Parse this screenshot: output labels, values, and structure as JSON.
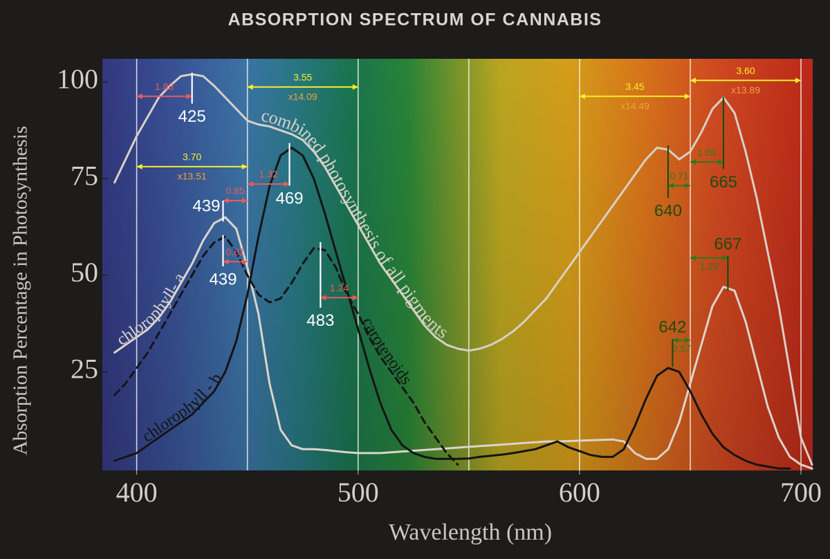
{
  "chart_data": {
    "type": "line",
    "title": "ABSORPTION SPECTRUM OF CANNABIS",
    "x_label": "Wavelength (nm)",
    "y_label": "Absorption Percentage in Photosynthesis",
    "xlim": [
      384.5,
      705.3
    ],
    "ylim": [
      -0.5,
      106
    ],
    "xticks": [
      400,
      500,
      600,
      700
    ],
    "yticks": [
      25,
      50,
      75,
      100
    ],
    "x_gridlines": [
      400,
      450,
      500,
      550,
      600,
      650,
      700
    ],
    "x": [
      390,
      395,
      400,
      405,
      410,
      415,
      420,
      425,
      430,
      435,
      440,
      445,
      450,
      455,
      460,
      465,
      470,
      475,
      480,
      485,
      490,
      495,
      500,
      505,
      510,
      515,
      520,
      525,
      530,
      535,
      540,
      545,
      550,
      555,
      560,
      565,
      570,
      575,
      580,
      585,
      590,
      595,
      600,
      605,
      610,
      615,
      620,
      625,
      630,
      635,
      640,
      645,
      650,
      655,
      660,
      665,
      670,
      675,
      680,
      685,
      690,
      695,
      700,
      705
    ],
    "series": [
      {
        "name": "combined photosynthesis of all pigments",
        "color": "#d8d0c8",
        "style": "solid",
        "values": [
          74,
          80,
          86,
          91,
          96,
          99,
          101.5,
          102,
          101.5,
          99,
          96,
          93,
          90,
          89,
          88.5,
          87.5,
          86.5,
          85,
          82,
          78,
          73,
          68,
          63,
          58,
          53,
          49,
          45,
          41,
          37,
          34,
          32,
          31,
          30.5,
          31,
          32,
          33.5,
          35.5,
          38,
          41,
          44,
          48,
          52,
          56,
          60,
          64,
          68,
          72,
          76,
          80,
          83,
          82.5,
          80,
          82,
          87,
          93,
          96,
          92,
          82,
          70,
          56,
          42,
          25,
          8,
          1
        ]
      },
      {
        "name": "chlorophyll- a",
        "color": "#dcd4cc",
        "style": "solid",
        "values": [
          30,
          32,
          34,
          36,
          39,
          43,
          48,
          53,
          59,
          63.5,
          65,
          62,
          52,
          40,
          22,
          10,
          6,
          5,
          5,
          4.8,
          4.5,
          4.2,
          4,
          4,
          4,
          4.2,
          4.4,
          4.6,
          4.8,
          5,
          5.2,
          5.4,
          5.6,
          5.8,
          6,
          6.2,
          6.4,
          6.6,
          6.8,
          7,
          7,
          7.1,
          7.2,
          7.3,
          7.4,
          7.5,
          7,
          4,
          2.5,
          2.5,
          5,
          12,
          22,
          32,
          42,
          47,
          46,
          38,
          27,
          16,
          8,
          3,
          1,
          0
        ]
      },
      {
        "name": "chlorophyll - b",
        "color": "#141414",
        "style": "solid",
        "values": [
          2,
          3,
          4,
          6,
          8,
          10,
          12,
          14,
          17,
          20,
          25,
          33,
          45,
          60,
          73,
          81,
          83,
          81,
          75,
          66,
          56,
          46,
          36,
          26,
          17,
          10,
          6,
          4,
          3,
          2.5,
          2.5,
          2.5,
          2.6,
          3,
          3.3,
          3.6,
          4,
          4.5,
          5,
          6,
          7,
          5.5,
          4.5,
          3.5,
          3,
          3,
          5,
          11,
          18,
          24,
          26,
          25,
          20,
          14,
          9,
          5.5,
          3.5,
          2,
          1,
          0.5,
          0,
          0,
          null,
          null
        ]
      },
      {
        "name": "carotenoids",
        "color": "#141414",
        "style": "dashed",
        "values": [
          19,
          22,
          26,
          30,
          35,
          40,
          45,
          50,
          55,
          58.5,
          60,
          56,
          50,
          45,
          43,
          44,
          48,
          53,
          57,
          56.5,
          52,
          45,
          40,
          34,
          29,
          25,
          21,
          17,
          12,
          8,
          4,
          1,
          null,
          null,
          null,
          null,
          null,
          null,
          null,
          null,
          null,
          null,
          null,
          null,
          null,
          null,
          null,
          null,
          null,
          null,
          null,
          null,
          null,
          null,
          null,
          null,
          null,
          null,
          null,
          null,
          null,
          null,
          null,
          null
        ]
      }
    ],
    "peaks": [
      {
        "x": 425,
        "y": 102.4,
        "y2": 94.4,
        "color": "#ffffff",
        "label_pos": "below"
      },
      {
        "x": 439,
        "y": 69.3,
        "y2": 63.9,
        "color": "#ffffff",
        "label_pos": "left"
      },
      {
        "x": 439,
        "y": 60.4,
        "y2": 52.3,
        "color": "#ffffff",
        "label_pos": "below"
      },
      {
        "x": 469,
        "y": 84.2,
        "y2": 73.2,
        "color": "#ffffff",
        "label_pos": "below"
      },
      {
        "x": 483,
        "y": 58.6,
        "y2": 41.6,
        "color": "#ffffff",
        "label_pos": "below"
      },
      {
        "x": 640,
        "y": 83.6,
        "y2": 70,
        "color": "#1c4d10",
        "label_pos": "below"
      },
      {
        "x": 665,
        "y": 96.1,
        "y2": 77.4,
        "color": "#1c4d10",
        "label_pos": "below"
      },
      {
        "x": 667,
        "y": 55,
        "y2": 46,
        "color": "#1c4d10",
        "label_pos": "above"
      },
      {
        "x": 642,
        "y": 33.5,
        "y2": 26.3,
        "color": "#1c4d10",
        "label_pos": "above"
      }
    ],
    "spans": [
      {
        "from": 400,
        "to": 425,
        "y": 96.3,
        "label": "1.88",
        "color": "#f05a5a",
        "label_pos": "above"
      },
      {
        "from": 439,
        "to": 450,
        "y": 69.3,
        "label": "0.85",
        "color": "#f05a5a",
        "label_pos": "above"
      },
      {
        "from": 439,
        "to": 450,
        "y": 53.5,
        "label": "0.81",
        "color": "#f05a5a",
        "label_pos": "above"
      },
      {
        "from": 450,
        "to": 469,
        "y": 73.6,
        "label": "1.32",
        "color": "#f05a5a",
        "label_pos": "above"
      },
      {
        "from": 483,
        "to": 500,
        "y": 44.2,
        "label": "1.24",
        "color": "#f05a5a",
        "label_pos": "above"
      },
      {
        "from": 400,
        "to": 450,
        "y": 78.1,
        "label": "3.70",
        "sublabel": "x13.51",
        "color": "#f5f02a",
        "sublabel_color": "#f0a040",
        "label_pos": "above"
      },
      {
        "from": 450,
        "to": 500,
        "y": 98.7,
        "label": "3.55",
        "sublabel": "x14.09",
        "color": "#f5f02a",
        "sublabel_color": "#f0a040",
        "label_pos": "above"
      },
      {
        "from": 600,
        "to": 650,
        "y": 96.3,
        "label": "3.45",
        "sublabel": "x14.49",
        "color": "#f5f02a",
        "sublabel_color": "#f0a040",
        "label_pos": "above"
      },
      {
        "from": 650,
        "to": 700,
        "y": 100.4,
        "label": "3.60",
        "sublabel": "x13.89",
        "color": "#f5f02a",
        "sublabel_color": "#f0a040",
        "label_pos": "above"
      },
      {
        "from": 650,
        "to": 665,
        "y": 79.3,
        "label": "1.06",
        "color": "#2c7a1c",
        "label_pos": "above"
      },
      {
        "from": 640,
        "to": 650,
        "y": 73.2,
        "label": "0.71",
        "color": "#2c7a1c",
        "label_pos": "above"
      },
      {
        "from": 650,
        "to": 667,
        "y": 54.5,
        "label": "1.23",
        "color": "#2c7a1c",
        "label_pos": "below"
      },
      {
        "from": 642,
        "to": 650,
        "y": 33.2,
        "label": "0.57",
        "color": "#2c7a1c",
        "label_pos": "below"
      }
    ]
  }
}
